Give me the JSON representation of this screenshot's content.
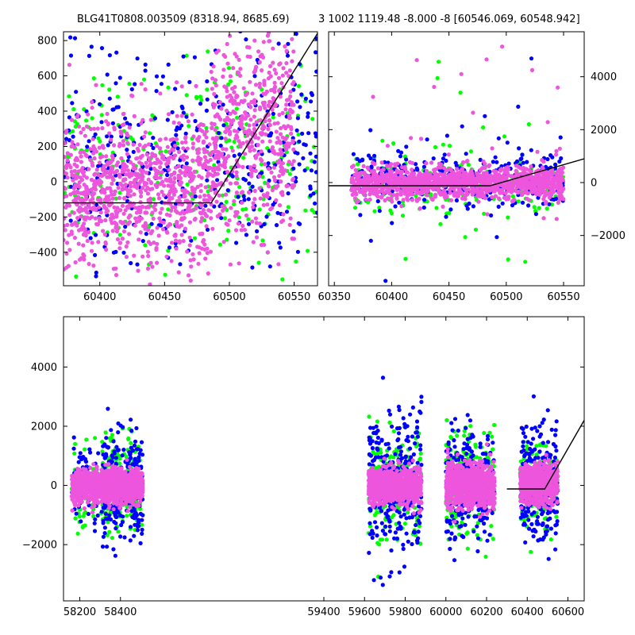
{
  "titles": {
    "left": "BLG41T0808.003509 (8318.94, 8685.69)",
    "right": "3 1002 1119.48 -8.000 -8 [60546.069, 60548.942]"
  },
  "colors": {
    "green": "#00ff00",
    "blue": "#0000ff",
    "magenta": "#ee55dd",
    "model": "#000000"
  },
  "chart_data": [
    {
      "type": "scatter",
      "title": "BLG41T0808.003509 (8318.94, 8685.69)",
      "xlim": [
        60372,
        60568
      ],
      "ylim": [
        -590,
        850
      ],
      "xticks": [
        60400,
        60450,
        60500,
        60550
      ],
      "yticks": [
        -400,
        -200,
        0,
        200,
        400,
        600,
        800
      ],
      "model_line": {
        "x": [
          60372,
          60486,
          60568
        ],
        "y": [
          -120,
          -120,
          840
        ]
      },
      "groups": [
        {
          "color": "green",
          "segments": [
            [
              60372,
              60568,
              -500,
              700,
              250
            ]
          ]
        },
        {
          "color": "blue",
          "segments": [
            [
              60372,
              60568,
              -550,
              800,
              400
            ]
          ]
        },
        {
          "color": "magenta",
          "segments": [
            [
              60372,
              60486,
              -450,
              350,
              900
            ],
            [
              60486,
              60550,
              -300,
              850,
              500
            ]
          ]
        }
      ]
    },
    {
      "type": "scatter",
      "xlim": [
        60345,
        60568
      ],
      "ylim": [
        -3900,
        5700
      ],
      "xticks": [
        60350,
        60400,
        60450,
        60500,
        60550
      ],
      "yticks": [
        -2000,
        0,
        2000,
        4000
      ],
      "model_line": {
        "x": [
          60345,
          60486,
          60568
        ],
        "y": [
          -120,
          -120,
          900
        ]
      },
      "groups": [
        {
          "color": "green",
          "segments": [
            [
              60365,
              60550,
              -1200,
              1000,
              150
            ],
            [
              60365,
              60550,
              -3500,
              5000,
              20
            ]
          ]
        },
        {
          "color": "blue",
          "segments": [
            [
              60365,
              60550,
              -1000,
              1200,
              300
            ],
            [
              60365,
              60550,
              -3700,
              5000,
              25
            ]
          ]
        },
        {
          "color": "magenta",
          "segments": [
            [
              60365,
              60550,
              -600,
              600,
              1200
            ],
            [
              60365,
              60550,
              -3000,
              5400,
              30
            ]
          ]
        }
      ]
    },
    {
      "type": "scatter",
      "xlim": [
        58120,
        60680
      ],
      "ylim": [
        -3900,
        5700
      ],
      "xticks": [
        58200,
        58400,
        59400,
        59600,
        59800,
        60000,
        60200,
        60400,
        60600
      ],
      "xticklabels": [
        "58200",
        "58400",
        "59400",
        "59600",
        "59800",
        "60000",
        "60200",
        "60400",
        "60600"
      ],
      "yticks": [
        -2000,
        0,
        2000,
        4000
      ],
      "model_line": {
        "x": [
          60300,
          60486,
          60680
        ],
        "y": [
          -120,
          -120,
          2200
        ]
      },
      "groups": [
        {
          "color": "green",
          "segments": [
            [
              58160,
              58400,
              -1500,
              1500,
              120
            ],
            [
              58310,
              58510,
              -1500,
              1500,
              200
            ],
            [
              59620,
              59880,
              -1800,
              1800,
              200
            ],
            [
              60000,
              60240,
              -1800,
              1800,
              200
            ],
            [
              60365,
              60550,
              -1500,
              1500,
              150
            ]
          ]
        },
        {
          "color": "blue",
          "segments": [
            [
              58160,
              58400,
              -1500,
              1500,
              120
            ],
            [
              58310,
              58510,
              -1800,
              1800,
              250
            ],
            [
              59620,
              59880,
              -2500,
              2500,
              300
            ],
            [
              60000,
              60240,
              -2000,
              2000,
              250
            ],
            [
              60365,
              60550,
              -2000,
              2000,
              250
            ]
          ]
        },
        {
          "color": "magenta",
          "segments": [
            [
              58160,
              58400,
              -500,
              500,
              900
            ],
            [
              58310,
              58510,
              -500,
              500,
              900
            ],
            [
              59620,
              59880,
              -600,
              600,
              900
            ],
            [
              60000,
              60240,
              -700,
              700,
              900
            ],
            [
              60365,
              60550,
              -600,
              700,
              700
            ]
          ]
        }
      ]
    }
  ]
}
